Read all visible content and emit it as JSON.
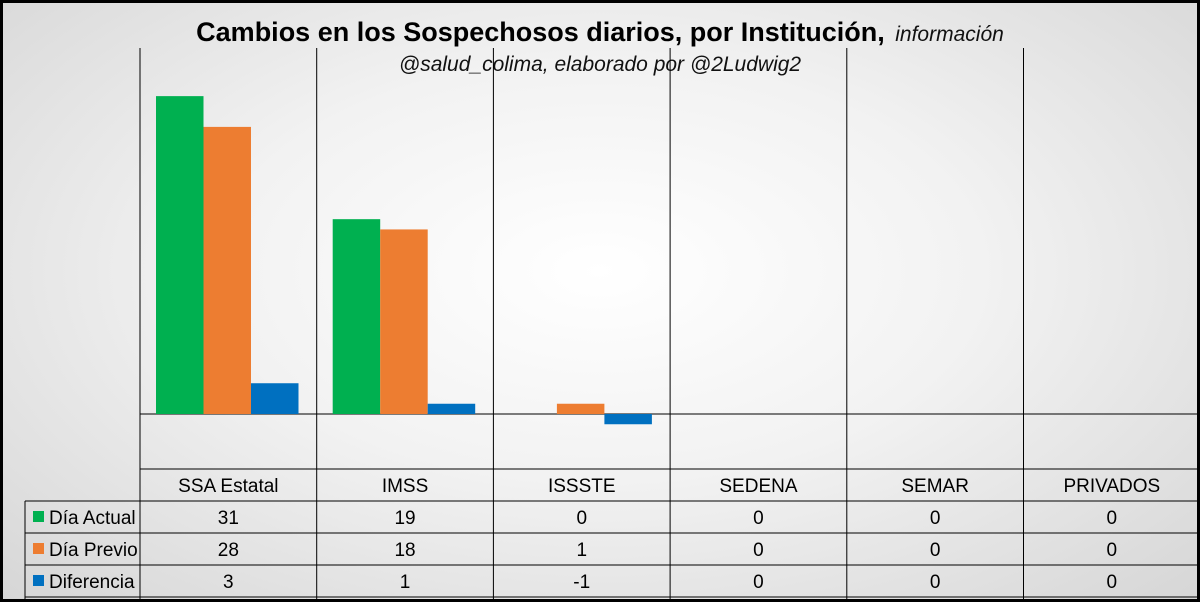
{
  "title": "Cambios en los Sospechosos diarios, por Institución,",
  "title_suffix": "información",
  "subtitle": "@salud_colima, elaborado por @2Ludwig2",
  "chart_data": {
    "type": "bar",
    "title": "Cambios en los Sospechosos diarios, por Institución, información @salud_colima, elaborado por @2Ludwig2",
    "categories": [
      "SSA Estatal",
      "IMSS",
      "ISSSTE",
      "SEDENA",
      "SEMAR",
      "PRIVADOS"
    ],
    "series": [
      {
        "name": "Día Actual",
        "color": "#00B050",
        "values": [
          31,
          19,
          0,
          0,
          0,
          0
        ]
      },
      {
        "name": "Día Previo",
        "color": "#ED7D31",
        "values": [
          28,
          18,
          1,
          0,
          0,
          0
        ]
      },
      {
        "name": "Diferencia",
        "color": "#0070C0",
        "values": [
          3,
          1,
          -1,
          0,
          0,
          0
        ]
      }
    ],
    "ylim": [
      -4,
      31.5
    ],
    "grid": false,
    "data_table": true,
    "legend": "data-table-left"
  }
}
